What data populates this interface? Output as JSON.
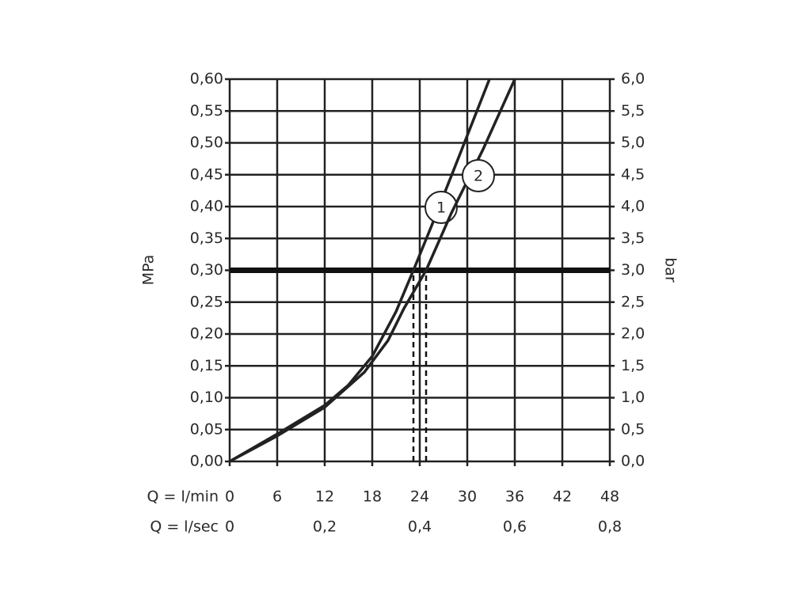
{
  "chart_data": {
    "type": "line",
    "ylabel": "MPa",
    "y2label": "bar",
    "xlabel": "Q = l/min",
    "x2label": "Q = l/sec",
    "xlim": [
      0,
      48
    ],
    "xticks": [
      0,
      6,
      12,
      18,
      24,
      30,
      36,
      42,
      48
    ],
    "x2lim": [
      0,
      0.8
    ],
    "x2ticks": [
      0,
      {
        "value": 0.2,
        "label": "0,2"
      },
      {
        "value": 0.4,
        "label": "0,4"
      },
      {
        "value": 0.6,
        "label": "0,6"
      },
      {
        "value": 0.8,
        "label": "0,8"
      }
    ],
    "ylim": [
      0,
      0.6
    ],
    "yticks": [
      {
        "value": 0,
        "label": "0,00"
      },
      {
        "value": 0.05,
        "label": "0,05"
      },
      {
        "value": 0.1,
        "label": "0,10"
      },
      {
        "value": 0.15,
        "label": "0,15"
      },
      {
        "value": 0.2,
        "label": "0,20"
      },
      {
        "value": 0.25,
        "label": "0,25"
      },
      {
        "value": 0.3,
        "label": "0,30"
      },
      {
        "value": 0.35,
        "label": "0,35"
      },
      {
        "value": 0.4,
        "label": "0,40"
      },
      {
        "value": 0.45,
        "label": "0,45"
      },
      {
        "value": 0.5,
        "label": "0,50"
      },
      {
        "value": 0.55,
        "label": "0,55"
      },
      {
        "value": 0.6,
        "label": "0,60"
      }
    ],
    "y2lim": [
      0,
      6
    ],
    "y2ticks": [
      {
        "value": 0,
        "label": "0,0"
      },
      {
        "value": 0.5,
        "label": "0,5"
      },
      {
        "value": 1,
        "label": "1,0"
      },
      {
        "value": 1.5,
        "label": "1,5"
      },
      {
        "value": 2,
        "label": "2,0"
      },
      {
        "value": 2.5,
        "label": "2,5"
      },
      {
        "value": 3,
        "label": "3,0"
      },
      {
        "value": 3.5,
        "label": "3,5"
      },
      {
        "value": 4,
        "label": "4,0"
      },
      {
        "value": 4.5,
        "label": "4,5"
      },
      {
        "value": 5,
        "label": "5,0"
      },
      {
        "value": 5.5,
        "label": "5,5"
      },
      {
        "value": 6,
        "label": "6,0"
      }
    ],
    "grid": true,
    "hline": 0.3,
    "vlines": [
      23.2,
      24.8
    ],
    "series": [
      {
        "name": "1",
        "color": "#222222",
        "x": [
          0,
          6,
          12,
          15,
          18,
          21,
          23.2,
          25.5,
          29,
          32.8
        ],
        "values": [
          0,
          0.043,
          0.088,
          0.12,
          0.165,
          0.235,
          0.3,
          0.37,
          0.48,
          0.6
        ]
      },
      {
        "name": "2",
        "color": "#222222",
        "x": [
          0,
          6,
          12,
          17,
          20,
          22,
          24.8,
          28,
          32,
          36
        ],
        "values": [
          0,
          0.04,
          0.085,
          0.14,
          0.19,
          0.24,
          0.3,
          0.39,
          0.49,
          0.6
        ]
      }
    ]
  }
}
